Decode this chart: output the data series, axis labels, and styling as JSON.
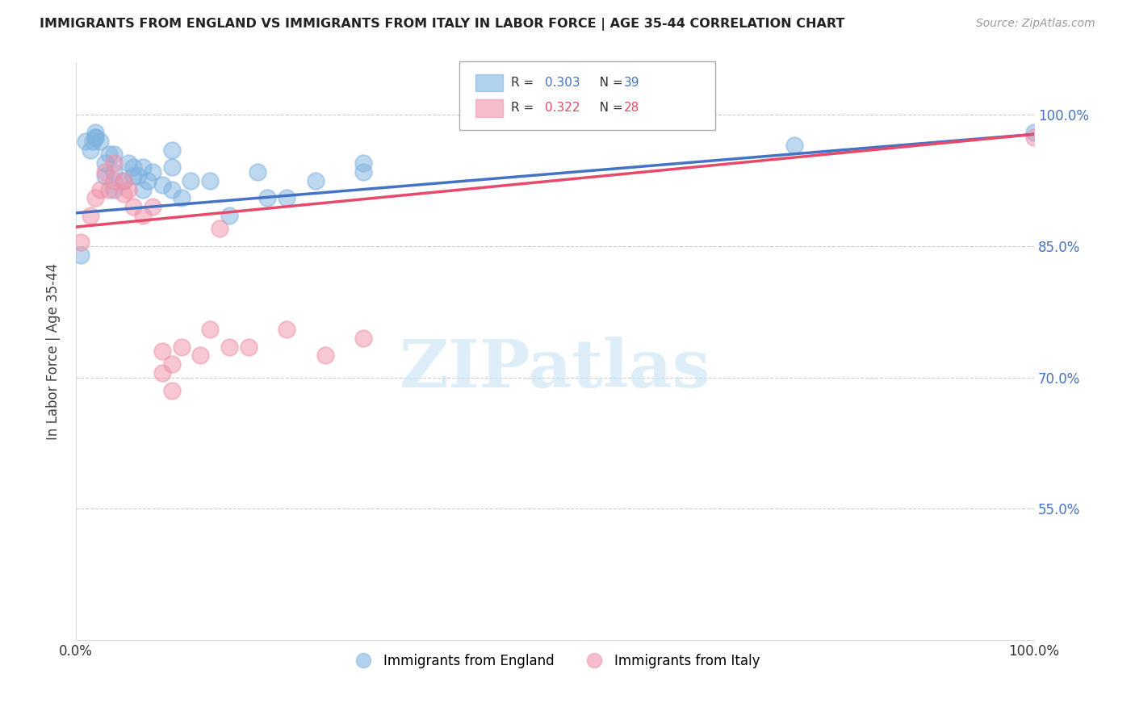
{
  "title": "IMMIGRANTS FROM ENGLAND VS IMMIGRANTS FROM ITALY IN LABOR FORCE | AGE 35-44 CORRELATION CHART",
  "source": "Source: ZipAtlas.com",
  "ylabel": "In Labor Force | Age 35-44",
  "england_color": "#7fb3e0",
  "italy_color": "#f092aa",
  "england_line_color": "#4472c4",
  "italy_line_color": "#e8496a",
  "legend_eng_r": "0.303",
  "legend_eng_n": "39",
  "legend_ita_r": "0.322",
  "legend_ita_n": "28",
  "xlim": [
    0.0,
    1.0
  ],
  "ylim": [
    0.4,
    1.06
  ],
  "yticks": [
    0.55,
    0.7,
    0.85,
    1.0
  ],
  "ytick_labels": [
    "55.0%",
    "70.0%",
    "85.0%",
    "100.0%"
  ],
  "england_x": [
    0.005,
    0.01,
    0.015,
    0.018,
    0.02,
    0.02,
    0.02,
    0.025,
    0.03,
    0.03,
    0.035,
    0.04,
    0.04,
    0.04,
    0.05,
    0.055,
    0.06,
    0.06,
    0.065,
    0.07,
    0.07,
    0.075,
    0.08,
    0.09,
    0.1,
    0.1,
    0.1,
    0.11,
    0.12,
    0.14,
    0.16,
    0.19,
    0.2,
    0.22,
    0.25,
    0.3,
    0.3,
    0.75,
    1.0
  ],
  "england_y": [
    0.84,
    0.97,
    0.96,
    0.97,
    0.975,
    0.975,
    0.98,
    0.97,
    0.93,
    0.945,
    0.955,
    0.915,
    0.935,
    0.955,
    0.925,
    0.945,
    0.93,
    0.94,
    0.93,
    0.915,
    0.94,
    0.925,
    0.935,
    0.92,
    0.915,
    0.94,
    0.96,
    0.905,
    0.925,
    0.925,
    0.885,
    0.935,
    0.905,
    0.905,
    0.925,
    0.935,
    0.945,
    0.965,
    0.98
  ],
  "italy_x": [
    0.005,
    0.015,
    0.02,
    0.025,
    0.03,
    0.035,
    0.04,
    0.04,
    0.05,
    0.05,
    0.055,
    0.06,
    0.07,
    0.08,
    0.09,
    0.09,
    0.1,
    0.1,
    0.11,
    0.13,
    0.14,
    0.15,
    0.16,
    0.18,
    0.22,
    0.26,
    0.3,
    1.0
  ],
  "italy_y": [
    0.855,
    0.885,
    0.905,
    0.915,
    0.935,
    0.915,
    0.925,
    0.945,
    0.91,
    0.925,
    0.915,
    0.895,
    0.885,
    0.895,
    0.705,
    0.73,
    0.685,
    0.715,
    0.735,
    0.725,
    0.755,
    0.87,
    0.735,
    0.735,
    0.755,
    0.725,
    0.745,
    0.975
  ],
  "eng_line_start_y": 0.888,
  "eng_line_end_y": 0.978,
  "ita_line_start_y": 0.872,
  "ita_line_end_y": 0.978,
  "watermark_text": "ZIPatlas",
  "background": "#ffffff",
  "grid_color": "#cccccc",
  "grid_style": "--"
}
